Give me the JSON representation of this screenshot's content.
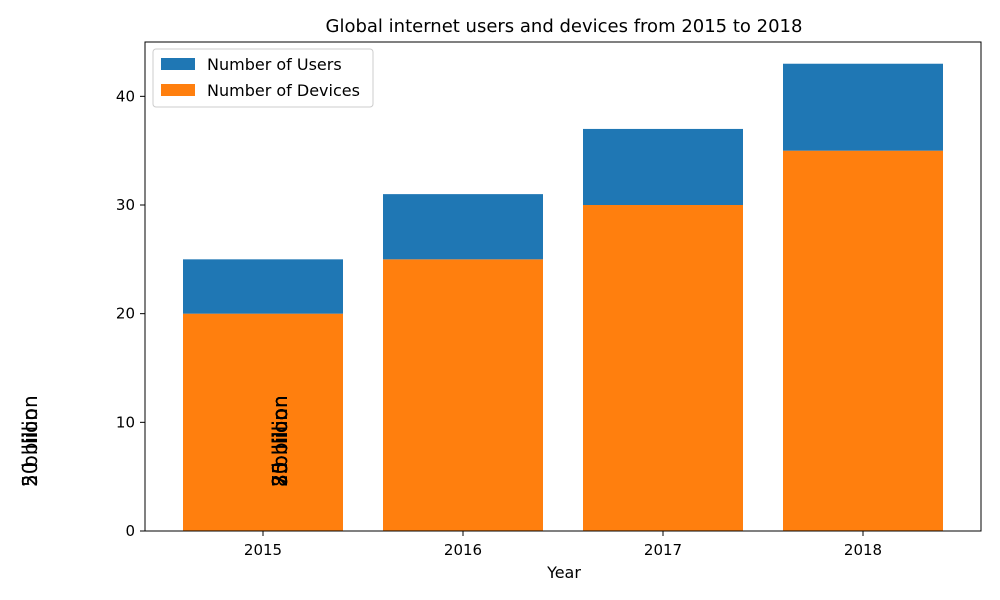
{
  "chart_data": {
    "type": "bar",
    "stacked": true,
    "title": "Global internet users and devices from 2015 to 2018",
    "xlabel": "Year",
    "ylabel": "",
    "categories": [
      "2015",
      "2016",
      "2017",
      "2018"
    ],
    "series": [
      {
        "name": "Number of Users",
        "values": [
          5,
          6,
          7,
          8
        ],
        "color": "#1f77b4"
      },
      {
        "name": "Number of Devices",
        "values": [
          20,
          25,
          30,
          35
        ],
        "color": "#ff7f0e"
      }
    ],
    "stack_order": [
      "Number of Devices",
      "Number of Users"
    ],
    "ylim": [
      0,
      45
    ],
    "yticks": [
      0,
      10,
      20,
      30,
      40
    ],
    "legend_position": "top-left",
    "grid": false,
    "annotations": {
      "outside_left": [
        "20 billion",
        "5 billion"
      ],
      "inside_plot": [
        "25 billion",
        "30 billion",
        "35 billion",
        "7 billion",
        "8 billion"
      ]
    }
  }
}
